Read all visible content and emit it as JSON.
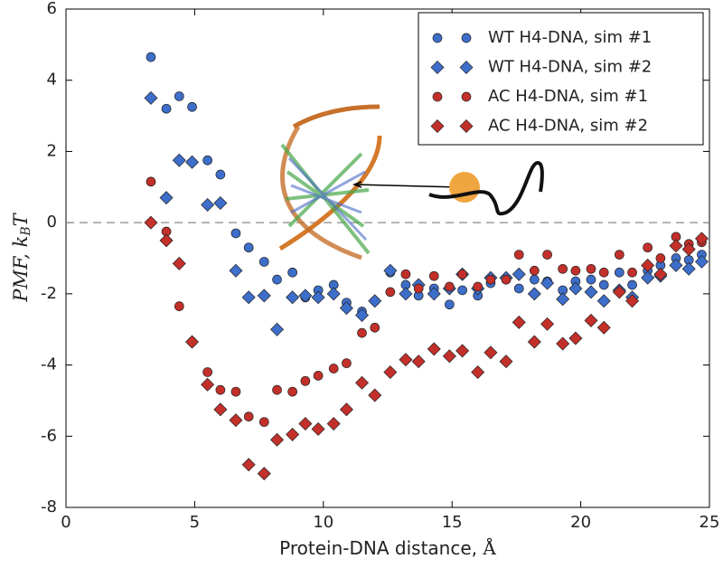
{
  "chart_data": {
    "type": "scatter",
    "xlabel": [
      "Protein-DNA distance, ",
      "Å"
    ],
    "ylabel": [
      "PMF, ",
      "k",
      "B",
      "T"
    ],
    "xlim": [
      0,
      25
    ],
    "ylim": [
      -8,
      6
    ],
    "xticks": [
      0,
      5,
      10,
      15,
      20,
      25
    ],
    "yticks": [
      -8,
      -6,
      -4,
      -2,
      0,
      2,
      4,
      6
    ],
    "hline": 0,
    "legend": "upper right",
    "x": [
      3.3,
      3.9,
      4.4,
      4.9,
      5.5,
      6.0,
      6.6,
      7.1,
      7.7,
      8.2,
      8.8,
      9.3,
      9.8,
      10.4,
      10.9,
      11.5,
      12.0,
      12.6,
      13.2,
      13.7,
      14.3,
      14.9,
      15.4,
      16.0,
      16.5,
      17.1,
      17.6,
      18.2,
      18.7,
      19.3,
      19.8,
      20.4,
      20.9,
      21.5,
      22.0,
      22.6,
      23.1,
      23.7,
      24.2,
      24.7
    ],
    "series": [
      {
        "name": "WT H4-DNA, sim #1",
        "color": "#3d6ec9",
        "marker": "circle",
        "values": [
          4.65,
          3.2,
          3.55,
          3.25,
          1.75,
          1.35,
          -0.3,
          -0.7,
          -1.1,
          -1.6,
          -1.4,
          -2.1,
          -1.9,
          -1.75,
          -2.25,
          -2.5,
          -2.2,
          -1.4,
          -1.75,
          -2.05,
          -1.85,
          -2.3,
          -1.9,
          -2.05,
          -1.7,
          -1.6,
          -1.85,
          -1.6,
          -1.65,
          -1.9,
          -1.65,
          -1.6,
          -1.75,
          -1.4,
          -1.75,
          -1.35,
          -1.2,
          -1.0,
          -1.05,
          -0.9
        ]
      },
      {
        "name": "WT H4-DNA, sim #2",
        "color": "#3d6ec9",
        "marker": "diamond",
        "values": [
          3.5,
          0.7,
          1.75,
          1.7,
          0.5,
          0.55,
          -1.35,
          -2.1,
          -2.05,
          -3.0,
          -2.1,
          -2.05,
          -2.1,
          -2.0,
          -2.4,
          -2.6,
          -2.2,
          -1.35,
          -2.0,
          -1.75,
          -2.0,
          -1.85,
          -1.45,
          -1.85,
          -1.55,
          -1.55,
          -1.45,
          -2.0,
          -1.7,
          -2.15,
          -1.85,
          -1.95,
          -2.2,
          -1.9,
          -2.1,
          -1.55,
          -1.5,
          -1.2,
          -1.3,
          -1.1
        ]
      },
      {
        "name": "AC H4-DNA, sim #1",
        "color": "#c3302a",
        "marker": "circle",
        "values": [
          1.15,
          -0.25,
          -2.35,
          -3.35,
          -4.2,
          -4.7,
          -4.75,
          -5.45,
          -5.6,
          -4.7,
          -4.75,
          -4.45,
          -4.3,
          -4.1,
          -3.95,
          -3.1,
          -2.95,
          -1.95,
          -1.45,
          -1.85,
          -1.5,
          -1.8,
          -1.45,
          -1.8,
          -1.6,
          -1.6,
          -0.9,
          -1.35,
          -0.9,
          -1.3,
          -1.35,
          -1.3,
          -1.4,
          -0.9,
          -1.4,
          -0.7,
          -1.0,
          -0.4,
          -0.6,
          -0.55
        ]
      },
      {
        "name": "AC H4-DNA, sim #2",
        "color": "#c3302a",
        "marker": "diamond",
        "values": [
          0.0,
          -0.5,
          -1.15,
          -3.35,
          -4.55,
          -5.25,
          -5.55,
          -6.8,
          -7.05,
          -6.1,
          -5.95,
          -5.65,
          -5.8,
          -5.65,
          -5.25,
          -4.5,
          -4.85,
          -4.2,
          -3.85,
          -3.9,
          -3.55,
          -3.75,
          -3.6,
          -4.2,
          -3.65,
          -3.9,
          -2.8,
          -3.35,
          -2.85,
          -3.4,
          -3.25,
          -2.75,
          -2.95,
          -1.95,
          -2.2,
          -1.2,
          -1.45,
          -0.65,
          -0.75,
          -0.45
        ]
      }
    ]
  }
}
